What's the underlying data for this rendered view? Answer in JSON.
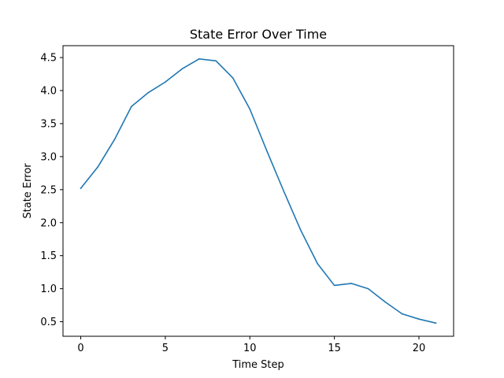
{
  "chart_data": {
    "type": "line",
    "title": "State Error Over Time",
    "xlabel": "Time Step",
    "ylabel": "State Error",
    "xlim": [
      -1.05,
      22.05
    ],
    "ylim": [
      0.28,
      4.68
    ],
    "xticks": [
      0,
      5,
      10,
      15,
      20
    ],
    "yticks": [
      0.5,
      1.0,
      1.5,
      2.0,
      2.5,
      3.0,
      3.5,
      4.0,
      4.5
    ],
    "grid": false,
    "series": [
      {
        "color": "#1f77b4",
        "x": [
          0,
          1,
          2,
          3,
          4,
          5,
          6,
          7,
          8,
          9,
          10,
          11,
          12,
          13,
          14,
          15,
          16,
          17,
          18,
          19,
          20,
          21
        ],
        "values": [
          2.52,
          2.84,
          3.26,
          3.76,
          3.97,
          4.13,
          4.33,
          4.48,
          4.45,
          4.19,
          3.72,
          3.09,
          2.48,
          1.89,
          1.38,
          1.05,
          1.08,
          1.0,
          0.8,
          0.62,
          0.54,
          0.48
        ]
      }
    ]
  }
}
